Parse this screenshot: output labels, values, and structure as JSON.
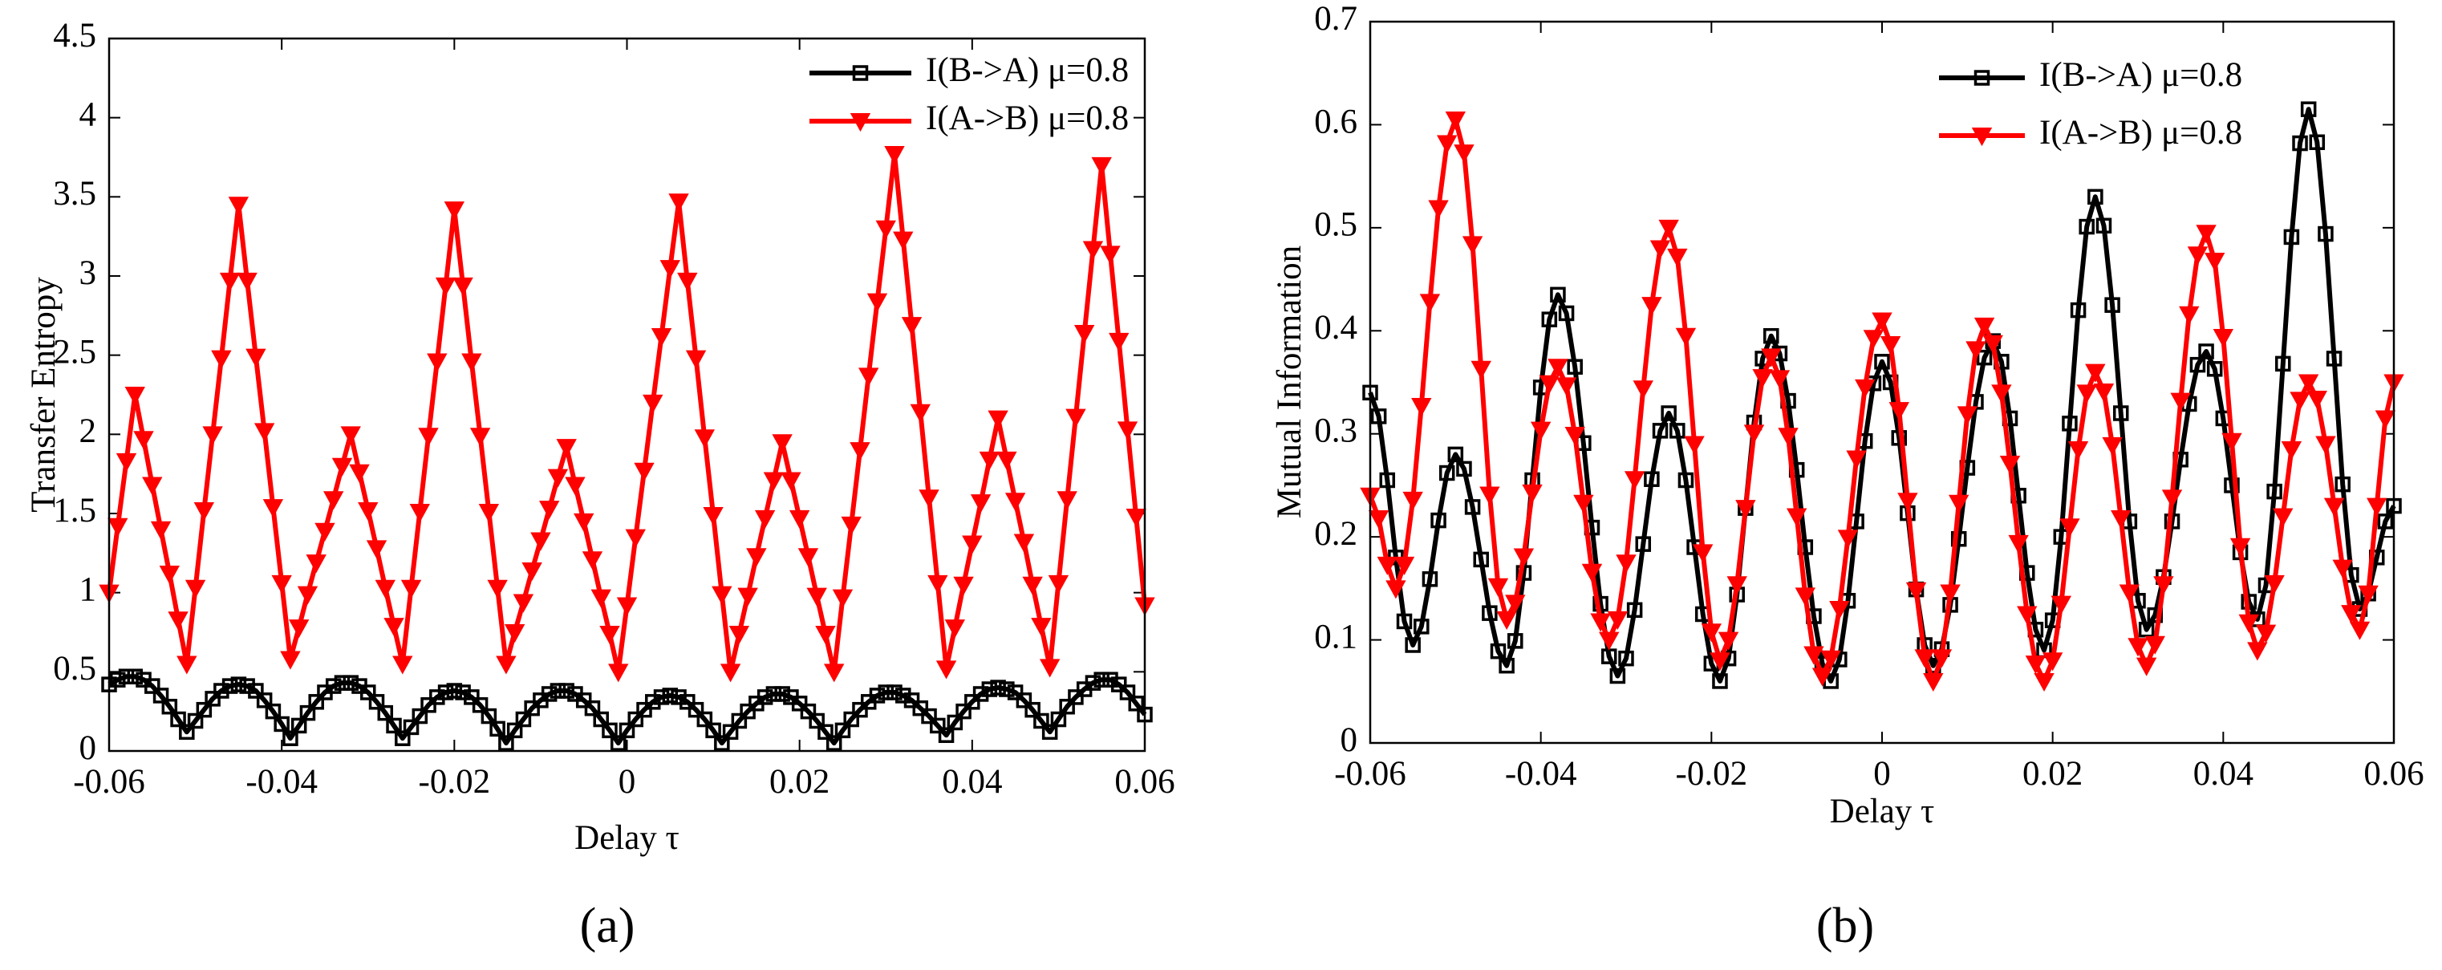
{
  "chart_data": [
    {
      "type": "line",
      "label": "(a)",
      "xlabel": "Delay τ",
      "ylabel": "Transfer Entropy",
      "xlim": [
        -0.06,
        0.06
      ],
      "xticks": [
        -0.06,
        -0.04,
        -0.02,
        0,
        0.02,
        0.04,
        0.06
      ],
      "ylim": [
        0,
        4.5
      ],
      "yticks": [
        0,
        0.5,
        1,
        1.5,
        2,
        2.5,
        3,
        3.5,
        4,
        4.5
      ],
      "legend": "upper right",
      "x": [
        -0.06,
        -0.059,
        -0.058,
        -0.057,
        -0.056,
        -0.055,
        -0.054,
        -0.053,
        -0.052,
        -0.051,
        -0.05,
        -0.049,
        -0.048,
        -0.047,
        -0.046,
        -0.045,
        -0.044,
        -0.043,
        -0.042,
        -0.041,
        -0.04,
        -0.039,
        -0.038,
        -0.037,
        -0.036,
        -0.035,
        -0.034,
        -0.033,
        -0.032,
        -0.031,
        -0.03,
        -0.029,
        -0.028,
        -0.027,
        -0.026,
        -0.025,
        -0.024,
        -0.023,
        -0.022,
        -0.021,
        -0.02,
        -0.019,
        -0.018,
        -0.017,
        -0.016,
        -0.015,
        -0.014,
        -0.013,
        -0.012,
        -0.011,
        -0.01,
        -0.009,
        -0.008,
        -0.007,
        -0.006,
        -0.005,
        -0.004,
        -0.003,
        -0.002,
        -0.001,
        0,
        0.001,
        0.002,
        0.003,
        0.004,
        0.005,
        0.006,
        0.007,
        0.008,
        0.009,
        0.01,
        0.011,
        0.012,
        0.013,
        0.014,
        0.015,
        0.016,
        0.017,
        0.018,
        0.019,
        0.02,
        0.021,
        0.022,
        0.023,
        0.024,
        0.025,
        0.026,
        0.027,
        0.028,
        0.029,
        0.03,
        0.031,
        0.032,
        0.033,
        0.034,
        0.035,
        0.036,
        0.037,
        0.038,
        0.039,
        0.04,
        0.041,
        0.042,
        0.043,
        0.044,
        0.045,
        0.046,
        0.047,
        0.048,
        0.049,
        0.05,
        0.051,
        0.052,
        0.053,
        0.054,
        0.055,
        0.056,
        0.057,
        0.058,
        0.059,
        0.06
      ],
      "series": [
        {
          "name": "I(B->A) μ=0.8",
          "color": "#000000",
          "marker": "square",
          "values": [
            0.42,
            0.45,
            0.47,
            0.47,
            0.45,
            0.41,
            0.35,
            0.28,
            0.2,
            0.12,
            0.19,
            0.26,
            0.33,
            0.38,
            0.41,
            0.42,
            0.41,
            0.38,
            0.32,
            0.25,
            0.17,
            0.08,
            0.16,
            0.24,
            0.31,
            0.37,
            0.41,
            0.43,
            0.43,
            0.41,
            0.37,
            0.31,
            0.24,
            0.16,
            0.08,
            0.15,
            0.22,
            0.29,
            0.34,
            0.37,
            0.38,
            0.37,
            0.34,
            0.29,
            0.22,
            0.14,
            0.05,
            0.13,
            0.2,
            0.27,
            0.32,
            0.36,
            0.38,
            0.38,
            0.36,
            0.32,
            0.27,
            0.2,
            0.13,
            0.05,
            0.13,
            0.2,
            0.26,
            0.31,
            0.34,
            0.35,
            0.34,
            0.31,
            0.26,
            0.2,
            0.13,
            0.05,
            0.12,
            0.19,
            0.25,
            0.3,
            0.34,
            0.36,
            0.36,
            0.34,
            0.3,
            0.25,
            0.19,
            0.12,
            0.05,
            0.13,
            0.2,
            0.26,
            0.31,
            0.35,
            0.37,
            0.37,
            0.35,
            0.32,
            0.27,
            0.22,
            0.16,
            0.1,
            0.18,
            0.25,
            0.31,
            0.36,
            0.39,
            0.4,
            0.39,
            0.37,
            0.32,
            0.26,
            0.19,
            0.12,
            0.2,
            0.28,
            0.34,
            0.39,
            0.43,
            0.45,
            0.45,
            0.42,
            0.37,
            0.3,
            0.23
          ]
        },
        {
          "name": "I(A->B) μ=0.8",
          "color": "#ff0000",
          "marker": "triangle-down",
          "values": [
            1.0,
            1.42,
            1.83,
            2.25,
            1.97,
            1.68,
            1.4,
            1.12,
            0.83,
            0.55,
            1.03,
            1.52,
            2.0,
            2.48,
            2.97,
            3.45,
            2.97,
            2.49,
            2.02,
            1.54,
            1.06,
            0.58,
            0.78,
            0.99,
            1.19,
            1.39,
            1.59,
            1.8,
            2.0,
            1.76,
            1.52,
            1.28,
            1.03,
            0.79,
            0.55,
            1.03,
            1.51,
            1.99,
            2.46,
            2.94,
            3.42,
            2.94,
            2.46,
            1.99,
            1.51,
            1.03,
            0.55,
            0.75,
            0.94,
            1.14,
            1.33,
            1.53,
            1.73,
            1.92,
            1.68,
            1.45,
            1.21,
            0.97,
            0.74,
            0.5,
            0.92,
            1.35,
            1.77,
            2.2,
            2.62,
            3.05,
            3.47,
            2.97,
            2.48,
            1.98,
            1.49,
            0.99,
            0.5,
            0.74,
            0.98,
            1.23,
            1.47,
            1.71,
            1.95,
            1.71,
            1.47,
            1.23,
            0.98,
            0.74,
            0.5,
            0.97,
            1.43,
            1.9,
            2.37,
            2.84,
            3.3,
            3.77,
            3.23,
            2.69,
            2.14,
            1.6,
            1.06,
            0.52,
            0.78,
            1.05,
            1.31,
            1.57,
            1.84,
            2.1,
            1.84,
            1.58,
            1.32,
            1.05,
            0.79,
            0.53,
            1.06,
            1.59,
            2.11,
            2.64,
            3.17,
            3.7,
            3.14,
            2.59,
            2.03,
            1.48,
            0.92
          ]
        }
      ]
    },
    {
      "type": "line",
      "label": "(b)",
      "xlabel": "Delay τ",
      "ylabel": "Mutual Information",
      "xlim": [
        -0.06,
        0.06
      ],
      "xticks": [
        -0.06,
        -0.04,
        -0.02,
        0,
        0.02,
        0.04,
        0.06
      ],
      "ylim": [
        0,
        0.7
      ],
      "yticks": [
        0,
        0.1,
        0.2,
        0.3,
        0.4,
        0.5,
        0.6,
        0.7
      ],
      "legend": "upper right",
      "x": [
        -0.06,
        -0.059,
        -0.058,
        -0.057,
        -0.056,
        -0.055,
        -0.054,
        -0.053,
        -0.052,
        -0.051,
        -0.05,
        -0.049,
        -0.048,
        -0.047,
        -0.046,
        -0.045,
        -0.044,
        -0.043,
        -0.042,
        -0.041,
        -0.04,
        -0.039,
        -0.038,
        -0.037,
        -0.036,
        -0.035,
        -0.034,
        -0.033,
        -0.032,
        -0.031,
        -0.03,
        -0.029,
        -0.028,
        -0.027,
        -0.026,
        -0.025,
        -0.024,
        -0.023,
        -0.022,
        -0.021,
        -0.02,
        -0.019,
        -0.018,
        -0.017,
        -0.016,
        -0.015,
        -0.014,
        -0.013,
        -0.012,
        -0.011,
        -0.01,
        -0.009,
        -0.008,
        -0.007,
        -0.006,
        -0.005,
        -0.004,
        -0.003,
        -0.002,
        -0.001,
        0,
        0.001,
        0.002,
        0.003,
        0.004,
        0.005,
        0.006,
        0.007,
        0.008,
        0.009,
        0.01,
        0.011,
        0.012,
        0.013,
        0.014,
        0.015,
        0.016,
        0.017,
        0.018,
        0.019,
        0.02,
        0.021,
        0.022,
        0.023,
        0.024,
        0.025,
        0.026,
        0.027,
        0.028,
        0.029,
        0.03,
        0.031,
        0.032,
        0.033,
        0.034,
        0.035,
        0.036,
        0.037,
        0.038,
        0.039,
        0.04,
        0.041,
        0.042,
        0.043,
        0.044,
        0.045,
        0.046,
        0.047,
        0.048,
        0.049,
        0.05,
        0.051,
        0.052,
        0.053,
        0.054,
        0.055,
        0.056,
        0.057,
        0.058,
        0.059,
        0.06
      ],
      "series": [
        {
          "name": "I(B->A) μ=0.8",
          "color": "#000000",
          "marker": "square",
          "values": [
            0.34,
            0.317,
            0.255,
            0.18,
            0.118,
            0.095,
            0.113,
            0.159,
            0.216,
            0.262,
            0.28,
            0.266,
            0.229,
            0.178,
            0.126,
            0.089,
            0.075,
            0.099,
            0.165,
            0.255,
            0.345,
            0.411,
            0.435,
            0.417,
            0.365,
            0.291,
            0.209,
            0.135,
            0.084,
            0.065,
            0.082,
            0.129,
            0.193,
            0.256,
            0.303,
            0.32,
            0.303,
            0.255,
            0.19,
            0.125,
            0.077,
            0.06,
            0.082,
            0.144,
            0.228,
            0.311,
            0.373,
            0.395,
            0.378,
            0.332,
            0.265,
            0.19,
            0.123,
            0.077,
            0.06,
            0.081,
            0.138,
            0.215,
            0.293,
            0.349,
            0.37,
            0.35,
            0.296,
            0.223,
            0.149,
            0.095,
            0.075,
            0.091,
            0.134,
            0.198,
            0.267,
            0.331,
            0.374,
            0.39,
            0.37,
            0.315,
            0.24,
            0.165,
            0.11,
            0.09,
            0.119,
            0.2,
            0.31,
            0.42,
            0.501,
            0.53,
            0.502,
            0.425,
            0.32,
            0.215,
            0.138,
            0.11,
            0.124,
            0.161,
            0.215,
            0.275,
            0.329,
            0.367,
            0.38,
            0.363,
            0.315,
            0.25,
            0.185,
            0.137,
            0.12,
            0.153,
            0.244,
            0.368,
            0.491,
            0.582,
            0.615,
            0.583,
            0.494,
            0.373,
            0.251,
            0.163,
            0.13,
            0.145,
            0.18,
            0.215,
            0.23
          ]
        },
        {
          "name": "I(A->B) μ=0.8",
          "color": "#ff0000",
          "marker": "triangle-down",
          "values": [
            0.24,
            0.218,
            0.173,
            0.15,
            0.173,
            0.236,
            0.327,
            0.428,
            0.519,
            0.582,
            0.605,
            0.573,
            0.484,
            0.363,
            0.241,
            0.152,
            0.12,
            0.136,
            0.181,
            0.243,
            0.304,
            0.349,
            0.365,
            0.347,
            0.299,
            0.233,
            0.166,
            0.118,
            0.1,
            0.12,
            0.175,
            0.256,
            0.344,
            0.425,
            0.48,
            0.5,
            0.472,
            0.395,
            0.29,
            0.185,
            0.108,
            0.08,
            0.1,
            0.154,
            0.228,
            0.301,
            0.355,
            0.375,
            0.354,
            0.298,
            0.22,
            0.143,
            0.086,
            0.065,
            0.082,
            0.13,
            0.199,
            0.276,
            0.345,
            0.393,
            0.41,
            0.387,
            0.323,
            0.235,
            0.148,
            0.083,
            0.06,
            0.083,
            0.146,
            0.233,
            0.319,
            0.382,
            0.405,
            0.388,
            0.34,
            0.271,
            0.194,
            0.125,
            0.077,
            0.06,
            0.08,
            0.135,
            0.21,
            0.285,
            0.34,
            0.36,
            0.341,
            0.289,
            0.218,
            0.146,
            0.094,
            0.075,
            0.096,
            0.154,
            0.238,
            0.332,
            0.416,
            0.474,
            0.495,
            0.468,
            0.394,
            0.293,
            0.191,
            0.117,
            0.09,
            0.107,
            0.155,
            0.22,
            0.285,
            0.333,
            0.35,
            0.334,
            0.29,
            0.23,
            0.17,
            0.126,
            0.11,
            0.145,
            0.23,
            0.315,
            0.35
          ]
        }
      ]
    }
  ]
}
